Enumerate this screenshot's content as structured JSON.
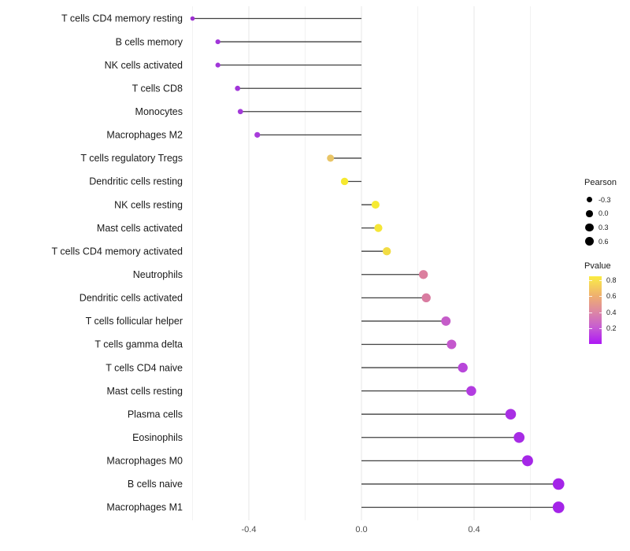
{
  "chart_data": {
    "type": "lollipop",
    "title": "",
    "xlabel": "",
    "ylabel": "",
    "x_ticks": [
      {
        "label": "-0.4",
        "value": -0.4
      },
      {
        "label": "0.0",
        "value": 0.0
      },
      {
        "label": "0.4",
        "value": 0.4
      }
    ],
    "xlim": [
      -0.62,
      0.75
    ],
    "baseline": 0,
    "grid": "vertical-only",
    "rows": [
      {
        "label": "T cells CD4 memory resting",
        "pearson": -0.6,
        "pvalue": 0.004,
        "color": "#9C30D0"
      },
      {
        "label": "B cells memory",
        "pearson": -0.51,
        "pvalue": 0.01,
        "color": "#A136D9"
      },
      {
        "label": "NK cells activated",
        "pearson": -0.51,
        "pvalue": 0.01,
        "color": "#A136D9"
      },
      {
        "label": "T cells CD8",
        "pearson": -0.44,
        "pvalue": 0.03,
        "color": "#A136D9"
      },
      {
        "label": "Monocytes",
        "pearson": -0.43,
        "pvalue": 0.03,
        "color": "#A33AD9"
      },
      {
        "label": "Macrophages M2",
        "pearson": -0.37,
        "pvalue": 0.06,
        "color": "#A83CDB"
      },
      {
        "label": "T cells regulatory  Tregs",
        "pearson": -0.11,
        "pvalue": 0.62,
        "color": "#E9C566"
      },
      {
        "label": "Dendritic cells resting",
        "pearson": -0.06,
        "pvalue": 0.8,
        "color": "#F6E930"
      },
      {
        "label": "NK cells resting",
        "pearson": 0.05,
        "pvalue": 0.82,
        "color": "#F6EA33"
      },
      {
        "label": "Mast cells activated",
        "pearson": 0.06,
        "pvalue": 0.79,
        "color": "#F5E636"
      },
      {
        "label": "T cells CD4 memory activated",
        "pearson": 0.09,
        "pvalue": 0.7,
        "color": "#F2DC43"
      },
      {
        "label": "Neutrophils",
        "pearson": 0.22,
        "pvalue": 0.42,
        "color": "#DB7F9E"
      },
      {
        "label": "Dendritic cells activated",
        "pearson": 0.23,
        "pvalue": 0.4,
        "color": "#D97CA1"
      },
      {
        "label": "T cells follicular helper",
        "pearson": 0.3,
        "pvalue": 0.25,
        "color": "#C55CC9"
      },
      {
        "label": "T cells gamma delta",
        "pearson": 0.32,
        "pvalue": 0.23,
        "color": "#C458CD"
      },
      {
        "label": "T cells CD4 naive",
        "pearson": 0.36,
        "pvalue": 0.17,
        "color": "#B847DA"
      },
      {
        "label": "Mast cells resting",
        "pearson": 0.39,
        "pvalue": 0.13,
        "color": "#B23CE0"
      },
      {
        "label": "Plasma cells",
        "pearson": 0.53,
        "pvalue": 0.04,
        "color": "#A92FE4"
      },
      {
        "label": "Eosinophils",
        "pearson": 0.56,
        "pvalue": 0.03,
        "color": "#A72CE5"
      },
      {
        "label": "Macrophages M0",
        "pearson": 0.59,
        "pvalue": 0.02,
        "color": "#A527E7"
      },
      {
        "label": "B cells naive",
        "pearson": 0.7,
        "pvalue": 0.004,
        "color": "#A424E8"
      },
      {
        "label": "Macrophages M1",
        "pearson": 0.7,
        "pvalue": 0.004,
        "color": "#A424E8"
      }
    ]
  },
  "legend": {
    "pearson": {
      "title": "Pearson",
      "dot_color": "#000000",
      "items": [
        {
          "label": "-0.3",
          "value": -0.3
        },
        {
          "label": "0.0",
          "value": 0.0
        },
        {
          "label": "0.3",
          "value": 0.3
        },
        {
          "label": "0.6",
          "value": 0.6
        }
      ]
    },
    "pvalue": {
      "title": "Pvalue",
      "range": [
        0,
        0.85
      ],
      "gradient_top_to_bottom": [
        "#FBEB3F",
        "#F8E14E",
        "#EFAF6F",
        "#DC86A5",
        "#C65BD3",
        "#AD17F5"
      ],
      "ticks": [
        {
          "label": "0.8",
          "value": 0.8
        },
        {
          "label": "0.6",
          "value": 0.6
        },
        {
          "label": "0.4",
          "value": 0.4
        },
        {
          "label": "0.2",
          "value": 0.2
        }
      ]
    }
  },
  "colors": {
    "stem": "#404040",
    "grid_major": "#e7e7e7",
    "grid_minor": "#f2f2f2",
    "axis_text": "#4d4d4d",
    "label_text": "#1a1a1a",
    "background": "#ffffff"
  }
}
